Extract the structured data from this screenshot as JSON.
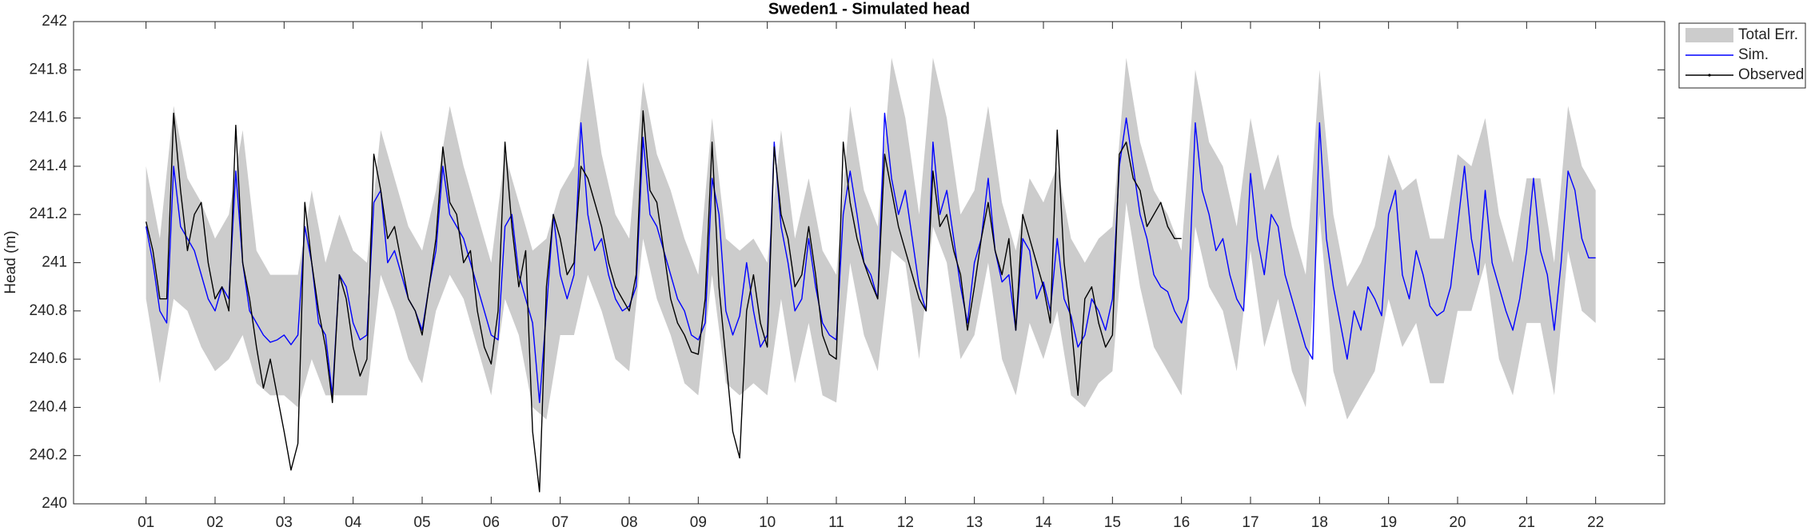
{
  "chart_data": {
    "type": "line",
    "title": "Sweden1 - Simulated head",
    "ylabel": "Head (m)",
    "xlim": [
      -0.05,
      23
    ],
    "ylim": [
      240,
      242
    ],
    "xticks": [
      {
        "value": 1,
        "label": "01"
      },
      {
        "value": 2,
        "label": "02"
      },
      {
        "value": 3,
        "label": "03"
      },
      {
        "value": 4,
        "label": "04"
      },
      {
        "value": 5,
        "label": "05"
      },
      {
        "value": 6,
        "label": "06"
      },
      {
        "value": 7,
        "label": "07"
      },
      {
        "value": 8,
        "label": "08"
      },
      {
        "value": 9,
        "label": "09"
      },
      {
        "value": 10,
        "label": "10"
      },
      {
        "value": 11,
        "label": "11"
      },
      {
        "value": 12,
        "label": "12"
      },
      {
        "value": 13,
        "label": "13"
      },
      {
        "value": 14,
        "label": "14"
      },
      {
        "value": 15,
        "label": "15"
      },
      {
        "value": 16,
        "label": "16"
      },
      {
        "value": 17,
        "label": "17"
      },
      {
        "value": 18,
        "label": "18"
      },
      {
        "value": 19,
        "label": "19"
      },
      {
        "value": 20,
        "label": "20"
      },
      {
        "value": 21,
        "label": "21"
      },
      {
        "value": 22,
        "label": "22"
      }
    ],
    "yticks": [
      240,
      240.2,
      240.4,
      240.6,
      240.8,
      241,
      241.2,
      241.4,
      241.6,
      241.8,
      242
    ],
    "grid": false,
    "legend": "northeastoutside",
    "x": [
      1,
      1.1,
      1.2,
      1.3,
      1.4,
      1.5,
      1.6,
      1.7,
      1.8,
      1.9,
      2,
      2.1,
      2.2,
      2.3,
      2.4,
      2.5,
      2.6,
      2.7,
      2.8,
      2.9,
      3,
      3.1,
      3.2,
      3.3,
      3.4,
      3.5,
      3.6,
      3.7,
      3.8,
      3.9,
      4,
      4.1,
      4.2,
      4.3,
      4.4,
      4.5,
      4.6,
      4.7,
      4.8,
      4.9,
      5,
      5.1,
      5.2,
      5.3,
      5.4,
      5.5,
      5.6,
      5.7,
      5.8,
      5.9,
      6,
      6.1,
      6.2,
      6.3,
      6.4,
      6.5,
      6.6,
      6.7,
      6.8,
      6.9,
      7,
      7.1,
      7.2,
      7.3,
      7.4,
      7.5,
      7.6,
      7.7,
      7.8,
      7.9,
      8,
      8.1,
      8.2,
      8.3,
      8.4,
      8.5,
      8.6,
      8.7,
      8.8,
      8.9,
      9,
      9.1,
      9.2,
      9.3,
      9.4,
      9.5,
      9.6,
      9.7,
      9.8,
      9.9,
      10,
      10.1,
      10.2,
      10.3,
      10.4,
      10.5,
      10.6,
      10.7,
      10.8,
      10.9,
      11,
      11.1,
      11.2,
      11.3,
      11.4,
      11.5,
      11.6,
      11.7,
      11.8,
      11.9,
      12,
      12.1,
      12.2,
      12.3,
      12.4,
      12.5,
      12.6,
      12.7,
      12.8,
      12.9,
      13,
      13.1,
      13.2,
      13.3,
      13.4,
      13.5,
      13.6,
      13.7,
      13.8,
      13.9,
      14,
      14.1,
      14.2,
      14.3,
      14.4,
      14.5,
      14.6,
      14.7,
      14.8,
      14.9,
      15,
      15.1,
      15.2,
      15.3,
      15.4,
      15.5,
      15.6,
      15.7,
      15.8,
      15.9,
      16,
      16.1,
      16.2,
      16.3,
      16.4,
      16.5,
      16.6,
      16.7,
      16.8,
      16.9,
      17,
      17.1,
      17.2,
      17.3,
      17.4,
      17.5,
      17.6,
      17.7,
      17.8,
      17.9,
      18,
      18.1,
      18.2,
      18.3,
      18.4,
      18.5,
      18.6,
      18.7,
      18.8,
      18.9,
      19,
      19.1,
      19.2,
      19.3,
      19.4,
      19.5,
      19.6,
      19.7,
      19.8,
      19.9,
      20,
      20.1,
      20.2,
      20.3,
      20.4,
      20.5,
      20.6,
      20.7,
      20.8,
      20.9,
      21,
      21.1,
      21.2,
      21.3,
      21.4,
      21.5,
      21.6,
      21.7,
      21.8,
      21.9,
      22
    ],
    "series": [
      {
        "name": "Total Err.",
        "color": "#cccccc",
        "kind": "band",
        "x": [
          1,
          1.2,
          1.4,
          1.6,
          1.8,
          2,
          2.2,
          2.4,
          2.6,
          2.8,
          3,
          3.2,
          3.4,
          3.6,
          3.8,
          4,
          4.2,
          4.4,
          4.6,
          4.8,
          5,
          5.2,
          5.4,
          5.6,
          5.8,
          6,
          6.2,
          6.4,
          6.6,
          6.8,
          7,
          7.2,
          7.4,
          7.6,
          7.8,
          8,
          8.2,
          8.4,
          8.6,
          8.8,
          9,
          9.2,
          9.4,
          9.6,
          9.8,
          10,
          10.2,
          10.4,
          10.6,
          10.8,
          11,
          11.2,
          11.4,
          11.6,
          11.8,
          12,
          12.2,
          12.4,
          12.6,
          12.8,
          13,
          13.2,
          13.4,
          13.6,
          13.8,
          14,
          14.2,
          14.4,
          14.6,
          14.8,
          15,
          15.2,
          15.4,
          15.6,
          15.8,
          16,
          16.2,
          16.4,
          16.6,
          16.8,
          17,
          17.2,
          17.4,
          17.6,
          17.8,
          18,
          18.2,
          18.4,
          18.6,
          18.8,
          19,
          19.2,
          19.4,
          19.6,
          19.8,
          20,
          20.2,
          20.4,
          20.6,
          20.8,
          21,
          21.2,
          21.4,
          21.6,
          21.8,
          22
        ],
        "lower": [
          240.85,
          240.5,
          240.85,
          240.8,
          240.65,
          240.55,
          240.6,
          240.7,
          240.5,
          240.45,
          240.45,
          240.4,
          240.6,
          240.45,
          240.45,
          240.45,
          240.45,
          240.95,
          240.8,
          240.6,
          240.5,
          240.8,
          240.95,
          240.85,
          240.65,
          240.45,
          240.85,
          240.7,
          240.4,
          240.35,
          240.7,
          240.7,
          240.95,
          240.8,
          240.6,
          240.55,
          241.1,
          240.85,
          240.7,
          240.5,
          240.45,
          240.95,
          240.5,
          240.45,
          240.5,
          240.45,
          240.85,
          240.5,
          240.75,
          240.45,
          240.42,
          241,
          240.7,
          240.55,
          241.05,
          241,
          240.6,
          241.15,
          241,
          240.6,
          240.7,
          241,
          240.6,
          240.45,
          240.75,
          240.6,
          240.8,
          240.45,
          240.4,
          240.5,
          240.55,
          241.25,
          240.9,
          240.65,
          240.55,
          240.45,
          241.15,
          240.9,
          240.8,
          240.55,
          241.05,
          240.65,
          240.85,
          240.55,
          240.4,
          241.2,
          240.55,
          240.35,
          240.45,
          240.55,
          240.85,
          240.65,
          240.75,
          240.5,
          240.5,
          240.8,
          240.8,
          241,
          240.6,
          240.45,
          240.75,
          240.75,
          240.45,
          241.05,
          240.8,
          240.75
        ],
        "upper": [
          241.4,
          241.1,
          241.65,
          241.35,
          241.25,
          241.1,
          241.2,
          241.55,
          241.05,
          240.95,
          240.95,
          240.95,
          241.3,
          241,
          241.2,
          241.05,
          241,
          241.55,
          241.35,
          241.15,
          241.05,
          241.3,
          241.65,
          241.4,
          241.2,
          241,
          241.45,
          241.25,
          241.05,
          241.1,
          241.3,
          241.4,
          241.85,
          241.45,
          241.2,
          241.1,
          241.75,
          241.45,
          241.3,
          241.1,
          240.95,
          241.6,
          241.1,
          241.05,
          241.1,
          241,
          241.55,
          241.1,
          241.35,
          241.05,
          240.95,
          241.65,
          241.3,
          241.15,
          241.85,
          241.6,
          241.2,
          241.85,
          241.6,
          241.2,
          241.3,
          241.65,
          241.25,
          241.05,
          241.35,
          241.25,
          241.4,
          241.1,
          241,
          241.1,
          241.15,
          241.85,
          241.5,
          241.3,
          241.2,
          241.05,
          241.8,
          241.5,
          241.4,
          241.15,
          241.6,
          241.3,
          241.45,
          241.15,
          240.95,
          241.8,
          241.2,
          240.9,
          241,
          241.15,
          241.45,
          241.3,
          241.35,
          241.1,
          241.1,
          241.45,
          241.4,
          241.6,
          241.2,
          241,
          241.35,
          241.35,
          241,
          241.65,
          241.4,
          241.3
        ]
      },
      {
        "name": "Sim.",
        "color": "#0000ff",
        "values": [
          241.15,
          241,
          240.8,
          240.75,
          241.4,
          241.15,
          241.1,
          241.05,
          240.95,
          240.85,
          240.8,
          240.9,
          240.85,
          241.38,
          241,
          240.8,
          240.75,
          240.7,
          240.67,
          240.68,
          240.7,
          240.66,
          240.7,
          241.15,
          241,
          240.75,
          240.7,
          240.45,
          240.95,
          240.9,
          240.75,
          240.68,
          240.7,
          241.25,
          241.3,
          241,
          241.05,
          240.95,
          240.85,
          240.8,
          240.72,
          240.9,
          241.05,
          241.4,
          241.2,
          241.15,
          241.1,
          241,
          240.9,
          240.8,
          240.7,
          240.68,
          241.15,
          241.2,
          240.95,
          240.85,
          240.75,
          240.42,
          240.8,
          241.2,
          240.95,
          240.85,
          240.95,
          241.58,
          241.2,
          241.05,
          241.1,
          240.95,
          240.85,
          240.8,
          240.82,
          240.9,
          241.52,
          241.2,
          241.15,
          241.05,
          240.95,
          240.85,
          240.8,
          240.7,
          240.68,
          240.75,
          241.35,
          241.2,
          240.8,
          240.7,
          240.78,
          241,
          240.8,
          240.65,
          240.7,
          241.5,
          241.15,
          241,
          240.8,
          240.85,
          241.1,
          240.9,
          240.75,
          240.7,
          240.68,
          241.2,
          241.38,
          241.2,
          241,
          240.95,
          240.85,
          241.62,
          241.35,
          241.2,
          241.3,
          241.1,
          240.9,
          240.8,
          241.5,
          241.2,
          241.3,
          241.1,
          240.9,
          240.75,
          241,
          241.1,
          241.35,
          241.05,
          240.92,
          240.95,
          240.72,
          241.1,
          241.05,
          240.85,
          240.92,
          240.8,
          241.1,
          240.85,
          240.78,
          240.65,
          240.7,
          240.85,
          240.8,
          240.72,
          240.85,
          241.4,
          241.6,
          241.4,
          241.2,
          241.1,
          240.95,
          240.9,
          240.88,
          240.8,
          240.75,
          240.85,
          241.58,
          241.3,
          241.2,
          241.05,
          241.1,
          240.95,
          240.85,
          240.8,
          241.37,
          241.1,
          240.95,
          241.2,
          241.15,
          240.95,
          240.85,
          240.75,
          240.65,
          240.6,
          241.58,
          241.1,
          240.9,
          240.75,
          240.6,
          240.8,
          240.72,
          240.9,
          240.85,
          240.78,
          241.2,
          241.3,
          240.95,
          240.85,
          241.05,
          240.95,
          240.82,
          240.78,
          240.8,
          240.9,
          241.15,
          241.4,
          241.1,
          240.95,
          241.3,
          241,
          240.9,
          240.8,
          240.72,
          240.85,
          241.05,
          241.35,
          241.05,
          240.95,
          240.72,
          241,
          241.38,
          241.3,
          241.1,
          241.02,
          241.02
        ]
      },
      {
        "name": "Observed",
        "color": "#000000",
        "values": [
          241.17,
          241.05,
          240.85,
          240.85,
          241.62,
          241.3,
          241.05,
          241.2,
          241.25,
          241,
          240.85,
          240.9,
          240.8,
          241.57,
          241,
          240.85,
          240.65,
          240.48,
          240.6,
          240.45,
          240.3,
          240.14,
          240.25,
          241.25,
          241,
          240.8,
          240.65,
          240.42,
          240.95,
          240.85,
          240.65,
          240.53,
          240.6,
          241.45,
          241.3,
          241.1,
          241.15,
          241,
          240.85,
          240.8,
          240.7,
          240.9,
          241.1,
          241.48,
          241.25,
          241.2,
          241,
          241.05,
          240.8,
          240.65,
          240.58,
          240.8,
          241.5,
          241.15,
          240.9,
          241.05,
          240.3,
          240.05,
          240.9,
          241.2,
          241.1,
          240.95,
          241,
          241.4,
          241.35,
          241.25,
          241.15,
          241,
          240.9,
          240.85,
          240.8,
          240.95,
          241.63,
          241.3,
          241.25,
          241.05,
          240.85,
          240.75,
          240.7,
          240.63,
          240.62,
          240.85,
          241.5,
          240.9,
          240.6,
          240.3,
          240.19,
          240.8,
          240.95,
          240.75,
          240.65,
          241.48,
          241.2,
          241.1,
          240.9,
          240.95,
          241.15,
          240.95,
          240.7,
          240.62,
          240.6,
          241.5,
          241.25,
          241.1,
          241,
          240.92,
          240.85,
          241.45,
          241.3,
          241.15,
          241.05,
          240.95,
          240.85,
          240.8,
          241.38,
          241.15,
          241.2,
          241.05,
          240.95,
          240.72,
          240.9,
          241.1,
          241.25,
          241.05,
          240.95,
          241.1,
          240.72,
          241.2,
          241.1,
          241,
          240.9,
          240.75,
          241.55,
          241,
          240.75,
          240.45,
          240.85,
          240.9,
          240.75,
          240.65,
          240.7,
          241.45,
          241.5,
          241.35,
          241.3,
          241.15,
          241.2,
          241.25,
          241.15,
          241.1,
          241.1,
          null,
          null,
          null,
          null,
          null,
          null,
          null,
          null,
          null,
          null,
          null,
          null,
          null,
          null,
          null,
          null,
          null,
          null,
          null,
          null,
          null,
          null,
          null,
          null,
          null,
          null,
          null,
          null,
          null,
          null,
          null,
          null,
          null,
          null,
          null,
          null,
          null,
          null,
          null,
          null,
          null,
          null,
          null,
          null,
          null,
          null,
          null,
          null,
          null,
          null,
          null,
          null,
          null,
          null,
          null,
          null,
          null,
          null,
          null,
          null
        ]
      }
    ]
  }
}
